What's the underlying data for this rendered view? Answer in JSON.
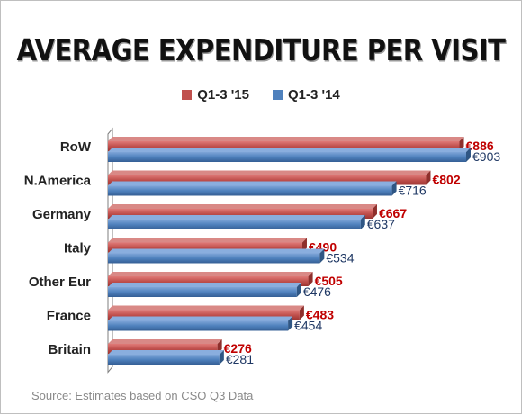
{
  "title": "AVERAGE EXPENDITURE PER VISIT",
  "source": "Source: Estimates based on CSO Q3 Data",
  "chart_data": {
    "type": "bar",
    "orientation": "horizontal",
    "categories": [
      "RoW",
      "N.America",
      "Germany",
      "Italy",
      "Other Eur",
      "France",
      "Britain"
    ],
    "series": [
      {
        "name": "Q1-3 '15",
        "color": "#c0504d",
        "values": [
          886,
          802,
          667,
          490,
          505,
          483,
          276
        ],
        "labels": [
          "€886",
          "€802",
          "€667",
          "€490",
          "€505",
          "€483",
          "€276"
        ]
      },
      {
        "name": "Q1-3 '14",
        "color": "#4f81bd",
        "values": [
          903,
          716,
          637,
          534,
          476,
          454,
          281
        ],
        "labels": [
          "€903",
          "€716",
          "€637",
          "€534",
          "€476",
          "€454",
          "€281"
        ]
      }
    ],
    "xlim": [
      0,
      903
    ],
    "grid": false,
    "legend_position": "top"
  }
}
